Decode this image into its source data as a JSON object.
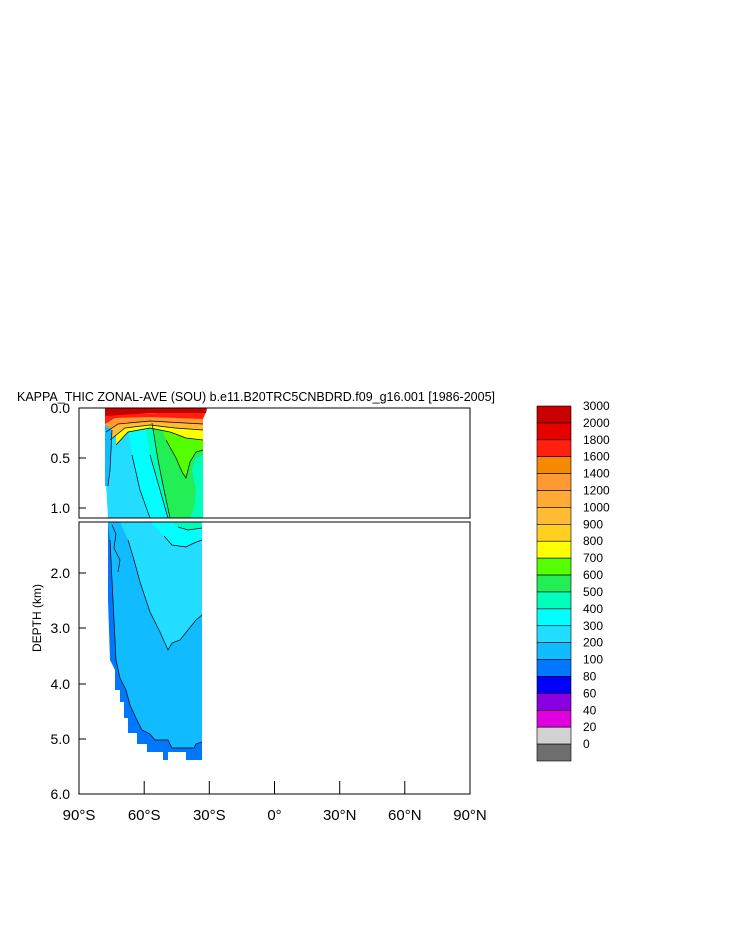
{
  "chart_data": {
    "type": "heatmap",
    "title": "KAPPA_THIC ZONAL-AVE (SOU) b.e11.B20TRC5CNBDRD.f09_g16.001 [1986-2005]",
    "ylabel": "DEPTH (km)",
    "xlabel": "",
    "x_ticks": [
      "90°S",
      "60°S",
      "30°S",
      "0°",
      "30°N",
      "60°N",
      "90°N"
    ],
    "x_tick_values": [
      -90,
      -60,
      -30,
      0,
      30,
      60,
      90
    ],
    "xlim": [
      -90,
      90
    ],
    "upper_panel": {
      "ylim": [
        0,
        1.1
      ],
      "y_ticks": [
        "0.0",
        "0.5",
        "1.0"
      ],
      "y_tick_values": [
        0,
        0.5,
        1.0
      ]
    },
    "lower_panel": {
      "ylim": [
        1.1,
        6.0
      ],
      "y_ticks": [
        "2.0",
        "3.0",
        "4.0",
        "5.0",
        "6.0"
      ],
      "y_tick_values": [
        2,
        3,
        4,
        5,
        6
      ]
    },
    "data_extent": {
      "lat_min": -80,
      "lat_max": -34,
      "depth_max_km": 5.4
    },
    "colorbar": {
      "levels": [
        "3000",
        "2000",
        "1800",
        "1600",
        "1400",
        "1200",
        "1000",
        "900",
        "800",
        "700",
        "600",
        "500",
        "400",
        "300",
        "200",
        "100",
        "80",
        "60",
        "40",
        "20",
        "0"
      ],
      "colors": [
        "#c80000",
        "#e60000",
        "#ff2010",
        "#f58a00",
        "#ff9933",
        "#ffaa33",
        "#ffbb33",
        "#ffd020",
        "#ffff00",
        "#55ff00",
        "#22ee55",
        "#00ffbb",
        "#00ffff",
        "#22ddff",
        "#11bbff",
        "#0077ff",
        "#0000ff",
        "#8a00e0",
        "#e000e0",
        "#d2d2d2",
        "#6e6e6e"
      ]
    }
  }
}
